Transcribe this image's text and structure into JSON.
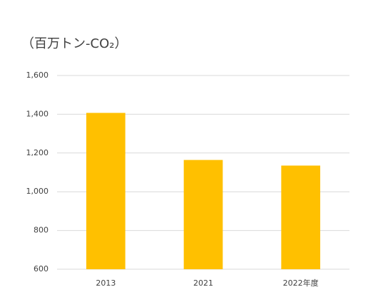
{
  "chart_data": {
    "type": "bar",
    "title": "（百万トン-CO₂）",
    "categories": [
      "2013",
      "2021",
      "2022年度"
    ],
    "values": [
      1407,
      1164,
      1135
    ],
    "color": "#ffc000",
    "ylim": [
      600,
      1600
    ],
    "yticks": [
      600,
      800,
      {
        "value": 1000,
        "label": "1,000"
      },
      {
        "value": 1200,
        "label": "1,200"
      },
      {
        "value": 1400,
        "label": "1,400"
      },
      {
        "value": 1600,
        "label": "1,600"
      }
    ],
    "grid": true
  }
}
